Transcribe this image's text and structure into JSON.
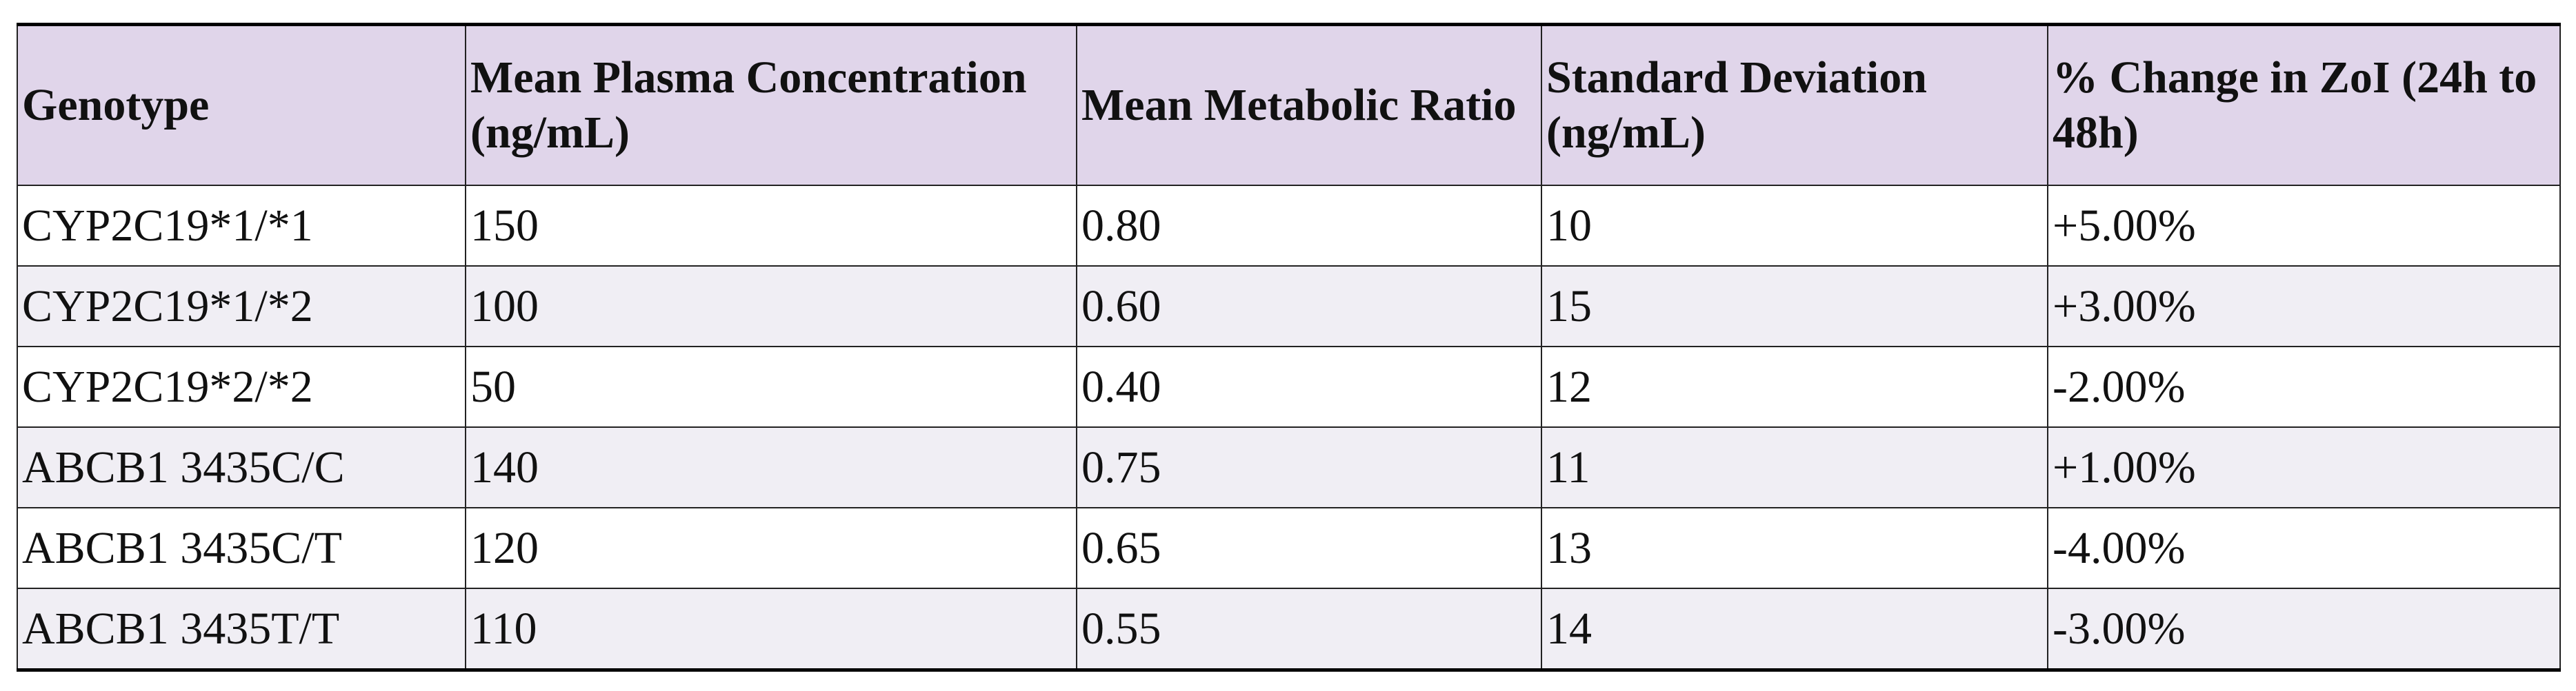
{
  "table": {
    "header": [
      "Genotype",
      "Mean Plasma Concentration (ng/mL)",
      "Mean Metabolic Ratio",
      "Standard Deviation (ng/mL)",
      "% Change in ZoI (24h to 48h)"
    ],
    "rows": [
      [
        "CYP2C19*1/*1",
        "150",
        "0.80",
        "10",
        "+5.00%"
      ],
      [
        "CYP2C19*1/*2",
        "100",
        "0.60",
        "15",
        "+3.00%"
      ],
      [
        "CYP2C19*2/*2",
        "50",
        "0.40",
        "12",
        "-2.00%"
      ],
      [
        "ABCB1 3435C/C",
        "140",
        "0.75",
        "11",
        "+1.00%"
      ],
      [
        "ABCB1 3435C/T",
        "120",
        "0.65",
        "13",
        "-4.00%"
      ],
      [
        "ABCB1 3435T/T",
        "110",
        "0.55",
        "14",
        "-3.00%"
      ]
    ]
  }
}
